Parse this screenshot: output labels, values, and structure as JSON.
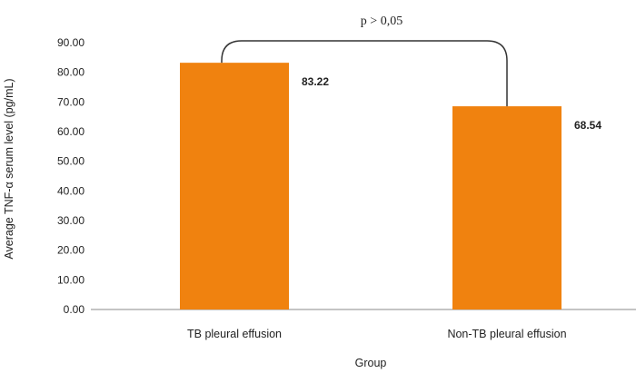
{
  "chart_data": {
    "type": "bar",
    "categories": [
      "TB pleural effusion",
      "Non-TB pleural effusion"
    ],
    "values": [
      83.22,
      68.54
    ],
    "data_labels": [
      "83.22",
      "68.54"
    ],
    "xlabel": "Group",
    "ylabel": "Average TNF-α serum level (pg/mL)",
    "ylim": [
      0,
      90
    ],
    "yticks": [
      "0.00",
      "10.00",
      "20.00",
      "30.00",
      "40.00",
      "50.00",
      "60.00",
      "70.00",
      "80.00",
      "90.00"
    ],
    "annotation": "p > 0,05",
    "grid": false,
    "legend": "none",
    "colors": {
      "bar": "#F0820F",
      "axis": "#888888",
      "bracket": "#333333"
    }
  }
}
